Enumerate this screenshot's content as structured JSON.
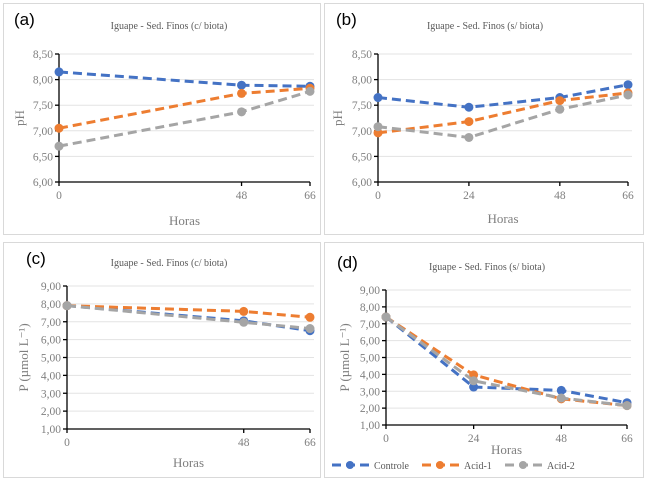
{
  "chart_data": [
    {
      "id": "a",
      "panel_label": "(a)",
      "type": "line",
      "title": "Iguape - Sed. Finos (c/ biota)",
      "xlabel": "Horas",
      "ylabel": "pH",
      "categories": [
        "0",
        "48",
        "66"
      ],
      "ylim": [
        6.0,
        8.5
      ],
      "yticks": [
        "6,00",
        "6,50",
        "7,00",
        "7,50",
        "8,00",
        "8,50"
      ],
      "ytick_values": [
        6.0,
        6.5,
        7.0,
        7.5,
        8.0,
        8.5
      ],
      "grid": true,
      "series": [
        {
          "name": "Controle",
          "color": "#4472c4",
          "values": [
            8.15,
            7.89,
            7.87
          ]
        },
        {
          "name": "Acid-1",
          "color": "#ed7d31",
          "values": [
            7.05,
            7.73,
            7.83
          ]
        },
        {
          "name": "Acid-2",
          "color": "#a5a5a5",
          "values": [
            6.7,
            7.37,
            7.77
          ]
        }
      ]
    },
    {
      "id": "b",
      "panel_label": "(b)",
      "type": "line",
      "title": "Iguape - Sed. Finos (s/ biota)",
      "xlabel": "Horas",
      "ylabel": "pH",
      "categories": [
        "0",
        "24",
        "48",
        "66"
      ],
      "ylim": [
        6.0,
        8.5
      ],
      "yticks": [
        "6,00",
        "6,50",
        "7,00",
        "7,50",
        "8,00",
        "8,50"
      ],
      "ytick_values": [
        6.0,
        6.5,
        7.0,
        7.5,
        8.0,
        8.5
      ],
      "grid": true,
      "series": [
        {
          "name": "Controle",
          "color": "#4472c4",
          "values": [
            7.65,
            7.46,
            7.65,
            7.9
          ]
        },
        {
          "name": "Acid-1",
          "color": "#ed7d31",
          "values": [
            6.96,
            7.18,
            7.59,
            7.74
          ]
        },
        {
          "name": "Acid-2",
          "color": "#a5a5a5",
          "values": [
            7.08,
            6.87,
            7.42,
            7.7
          ]
        }
      ]
    },
    {
      "id": "c",
      "panel_label": "(c)",
      "type": "line",
      "title": "Iguape - Sed. Finos (c/ biota)",
      "xlabel": "Horas",
      "ylabel": "P (µmol L⁻¹)",
      "categories": [
        "0",
        "48",
        "66"
      ],
      "ylim": [
        1.0,
        9.0
      ],
      "yticks": [
        "1,00",
        "2,00",
        "3,00",
        "4,00",
        "5,00",
        "6,00",
        "7,00",
        "8,00",
        "9,00"
      ],
      "ytick_values": [
        1,
        2,
        3,
        4,
        5,
        6,
        7,
        8,
        9
      ],
      "grid": true,
      "series": [
        {
          "name": "Controle",
          "color": "#4472c4",
          "values": [
            7.9,
            7.05,
            6.5
          ]
        },
        {
          "name": "Acid-1",
          "color": "#ed7d31",
          "values": [
            7.9,
            7.58,
            7.25
          ]
        },
        {
          "name": "Acid-2",
          "color": "#a5a5a5",
          "values": [
            7.9,
            6.97,
            6.62
          ]
        }
      ]
    },
    {
      "id": "d",
      "panel_label": "(d)",
      "type": "line",
      "title": "Iguape - Sed. Finos (s/ biota)",
      "xlabel": "Horas",
      "ylabel": "P (µmol L⁻¹)",
      "categories": [
        "0",
        "24",
        "48",
        "66"
      ],
      "ylim": [
        1.0,
        9.0
      ],
      "yticks": [
        "1,00",
        "2,00",
        "3,00",
        "4,00",
        "5,00",
        "6,00",
        "7,00",
        "8,00",
        "9,00"
      ],
      "ytick_values": [
        1,
        2,
        3,
        4,
        5,
        6,
        7,
        8,
        9
      ],
      "grid": true,
      "legend": "bottom",
      "series": [
        {
          "name": "Controle",
          "color": "#4472c4",
          "values": [
            7.4,
            3.25,
            3.05,
            2.32
          ]
        },
        {
          "name": "Acid-1",
          "color": "#ed7d31",
          "values": [
            7.4,
            3.97,
            2.55,
            2.15
          ]
        },
        {
          "name": "Acid-2",
          "color": "#a5a5a5",
          "values": [
            7.4,
            3.62,
            2.6,
            2.15
          ]
        }
      ]
    }
  ],
  "legend": {
    "items": [
      {
        "label": "Controle",
        "color": "#4472c4"
      },
      {
        "label": "Acid-1",
        "color": "#ed7d31"
      },
      {
        "label": "Acid-2",
        "color": "#a5a5a5"
      }
    ]
  }
}
